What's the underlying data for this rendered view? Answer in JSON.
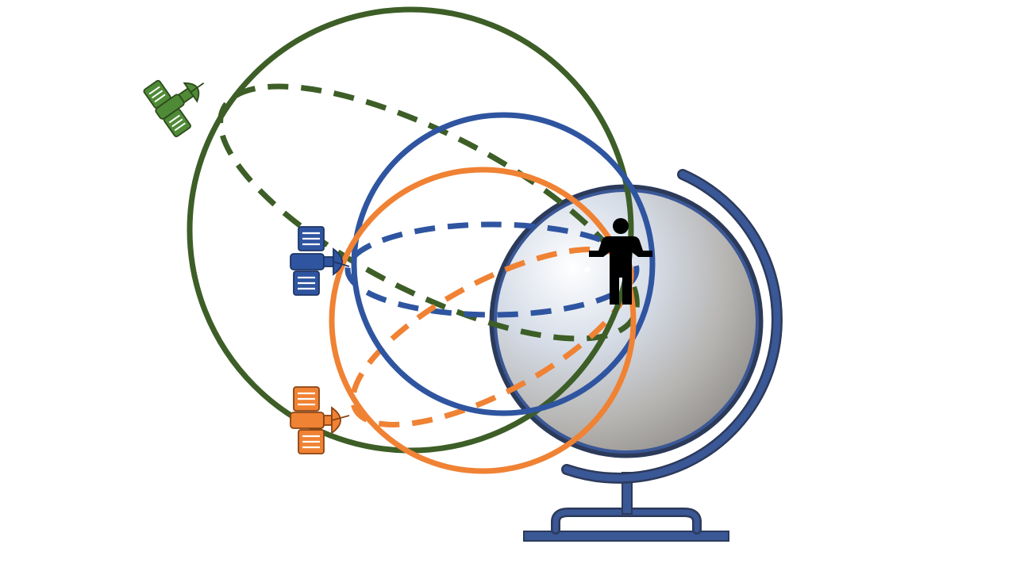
{
  "diagram": {
    "description_visible_text": "",
    "colors": {
      "green": "#3d5e27",
      "green_light": "#4f8a36",
      "blue": "#2f55a0",
      "blue_dark": "#2d4a80",
      "orange": "#f08234",
      "orange_dark": "#d86a1e",
      "globe_frame": "#3a5796",
      "globe_frame_outline": "#2c3a5a",
      "person": "#000000"
    },
    "satellites": [
      {
        "name": "green-satellite",
        "color_key": "green"
      },
      {
        "name": "blue-satellite",
        "color_key": "blue"
      },
      {
        "name": "orange-satellite",
        "color_key": "orange"
      }
    ],
    "icons": {
      "globe": "globe-icon",
      "person": "person-icon",
      "satellite": "satellite-icon"
    }
  }
}
